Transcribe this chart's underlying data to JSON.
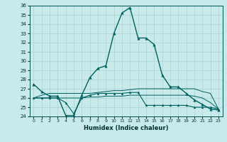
{
  "xlabel": "Humidex (Indice chaleur)",
  "background_color": "#c8eaea",
  "grid_color": "#aad4d4",
  "line_color": "#006060",
  "xlim": [
    -0.5,
    23.5
  ],
  "ylim": [
    24,
    36
  ],
  "xticks": [
    0,
    1,
    2,
    3,
    4,
    5,
    6,
    7,
    8,
    9,
    10,
    11,
    12,
    13,
    14,
    15,
    16,
    17,
    18,
    19,
    20,
    21,
    22,
    23
  ],
  "yticks": [
    24,
    25,
    26,
    27,
    28,
    29,
    30,
    31,
    32,
    33,
    34,
    35,
    36
  ],
  "series": {
    "line1": {
      "x": [
        0,
        1,
        2,
        3,
        4,
        5,
        6,
        7,
        8,
        9,
        10,
        11,
        12,
        13,
        14,
        15,
        16,
        17,
        18,
        19,
        20,
        21,
        22,
        23
      ],
      "y": [
        27.5,
        26.7,
        26.2,
        26.2,
        24.1,
        24.1,
        26.3,
        28.2,
        29.2,
        29.5,
        33.0,
        35.2,
        35.8,
        32.5,
        32.5,
        31.8,
        28.5,
        27.2,
        27.2,
        26.5,
        25.8,
        25.3,
        24.8,
        24.7
      ]
    },
    "line2": {
      "x": [
        0,
        1,
        2,
        3,
        4,
        5,
        6,
        7,
        8,
        9,
        10,
        11,
        12,
        13,
        14,
        15,
        16,
        17,
        18,
        19,
        20,
        21,
        22,
        23
      ],
      "y": [
        26.0,
        26.0,
        26.0,
        26.0,
        25.5,
        24.3,
        26.0,
        26.3,
        26.5,
        26.5,
        26.5,
        26.5,
        26.6,
        26.6,
        25.2,
        25.2,
        25.2,
        25.2,
        25.2,
        25.2,
        25.0,
        25.0,
        25.0,
        24.8
      ]
    },
    "line3": {
      "x": [
        0,
        1,
        2,
        3,
        4,
        5,
        6,
        7,
        8,
        9,
        10,
        11,
        12,
        13,
        14,
        15,
        16,
        17,
        18,
        19,
        20,
        21,
        22,
        23
      ],
      "y": [
        26.0,
        26.3,
        26.5,
        26.5,
        26.5,
        26.5,
        26.5,
        26.5,
        26.6,
        26.7,
        26.8,
        26.8,
        26.9,
        27.0,
        27.0,
        27.0,
        27.0,
        27.0,
        27.0,
        27.0,
        27.0,
        26.7,
        26.5,
        24.8
      ]
    },
    "line4": {
      "x": [
        0,
        1,
        2,
        3,
        4,
        5,
        6,
        7,
        8,
        9,
        10,
        11,
        12,
        13,
        14,
        15,
        16,
        17,
        18,
        19,
        20,
        21,
        22,
        23
      ],
      "y": [
        26.0,
        26.0,
        26.0,
        26.0,
        26.0,
        26.0,
        26.0,
        26.1,
        26.1,
        26.2,
        26.2,
        26.2,
        26.3,
        26.3,
        26.3,
        26.3,
        26.3,
        26.3,
        26.3,
        26.3,
        26.2,
        26.0,
        25.5,
        24.8
      ]
    }
  }
}
